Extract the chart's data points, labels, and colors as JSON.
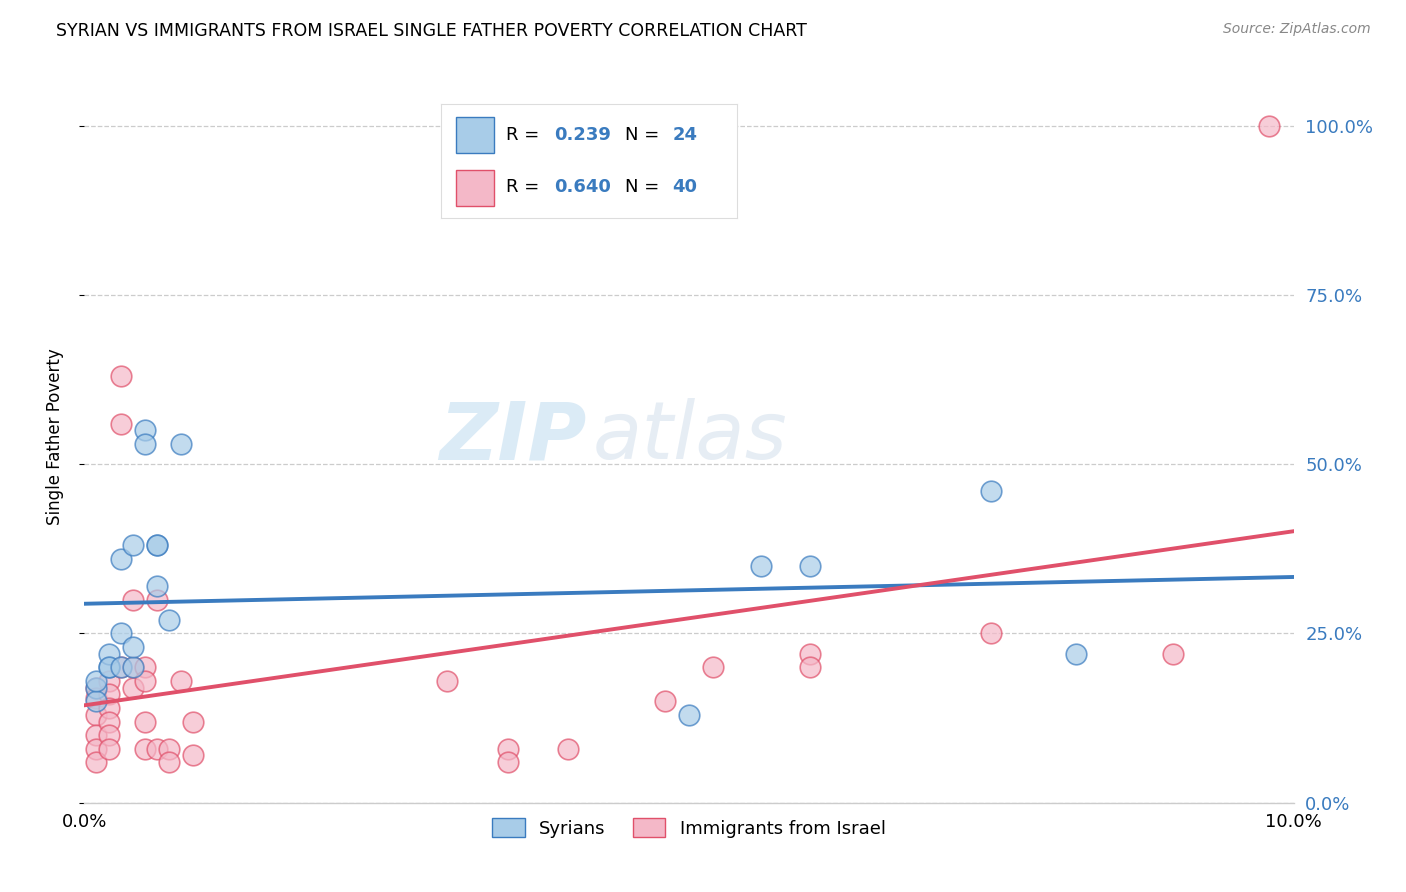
{
  "title": "SYRIAN VS IMMIGRANTS FROM ISRAEL SINGLE FATHER POVERTY CORRELATION CHART",
  "source": "Source: ZipAtlas.com",
  "ylabel": "Single Father Poverty",
  "legend_label1": "Syrians",
  "legend_label2": "Immigrants from Israel",
  "legend_r1": "0.239",
  "legend_n1": "24",
  "legend_r2": "0.640",
  "legend_n2": "40",
  "watermark_zip": "ZIP",
  "watermark_atlas": "atlas",
  "blue_color": "#a8cce8",
  "pink_color": "#f4b8c8",
  "blue_line_color": "#3a7bbf",
  "pink_line_color": "#e0506a",
  "blue_scatter": [
    [
      0.001,
      0.17
    ],
    [
      0.001,
      0.15
    ],
    [
      0.001,
      0.18
    ],
    [
      0.002,
      0.2
    ],
    [
      0.002,
      0.22
    ],
    [
      0.002,
      0.2
    ],
    [
      0.003,
      0.2
    ],
    [
      0.003,
      0.25
    ],
    [
      0.003,
      0.36
    ],
    [
      0.004,
      0.2
    ],
    [
      0.004,
      0.23
    ],
    [
      0.004,
      0.38
    ],
    [
      0.005,
      0.55
    ],
    [
      0.005,
      0.53
    ],
    [
      0.006,
      0.38
    ],
    [
      0.006,
      0.38
    ],
    [
      0.006,
      0.32
    ],
    [
      0.007,
      0.27
    ],
    [
      0.008,
      0.53
    ],
    [
      0.05,
      0.13
    ],
    [
      0.056,
      0.35
    ],
    [
      0.06,
      0.35
    ],
    [
      0.075,
      0.46
    ],
    [
      0.082,
      0.22
    ]
  ],
  "pink_scatter": [
    [
      0.001,
      0.17
    ],
    [
      0.001,
      0.155
    ],
    [
      0.001,
      0.13
    ],
    [
      0.001,
      0.1
    ],
    [
      0.001,
      0.08
    ],
    [
      0.001,
      0.06
    ],
    [
      0.002,
      0.18
    ],
    [
      0.002,
      0.16
    ],
    [
      0.002,
      0.14
    ],
    [
      0.002,
      0.12
    ],
    [
      0.002,
      0.1
    ],
    [
      0.002,
      0.08
    ],
    [
      0.003,
      0.2
    ],
    [
      0.003,
      0.56
    ],
    [
      0.003,
      0.63
    ],
    [
      0.004,
      0.3
    ],
    [
      0.004,
      0.2
    ],
    [
      0.004,
      0.17
    ],
    [
      0.005,
      0.2
    ],
    [
      0.005,
      0.18
    ],
    [
      0.005,
      0.12
    ],
    [
      0.005,
      0.08
    ],
    [
      0.006,
      0.3
    ],
    [
      0.006,
      0.08
    ],
    [
      0.007,
      0.08
    ],
    [
      0.007,
      0.06
    ],
    [
      0.008,
      0.18
    ],
    [
      0.009,
      0.12
    ],
    [
      0.009,
      0.07
    ],
    [
      0.03,
      0.18
    ],
    [
      0.035,
      0.08
    ],
    [
      0.035,
      0.06
    ],
    [
      0.04,
      0.08
    ],
    [
      0.048,
      0.15
    ],
    [
      0.052,
      0.2
    ],
    [
      0.06,
      0.22
    ],
    [
      0.06,
      0.2
    ],
    [
      0.075,
      0.25
    ],
    [
      0.09,
      0.22
    ],
    [
      0.098,
      1.0
    ]
  ],
  "xlim": [
    0.0,
    0.1
  ],
  "ylim": [
    0.0,
    1.08
  ],
  "yticks": [
    0.0,
    0.25,
    0.5,
    0.75,
    1.0
  ],
  "ytick_labels": [
    "0.0%",
    "25.0%",
    "50.0%",
    "75.0%",
    "100.0%"
  ],
  "xtick_positions": [
    0.0,
    0.025,
    0.05,
    0.075,
    0.1
  ],
  "xtick_labels": [
    "0.0%",
    "",
    "",
    "",
    "10.0%"
  ],
  "background_color": "#ffffff",
  "grid_color": "#cccccc"
}
